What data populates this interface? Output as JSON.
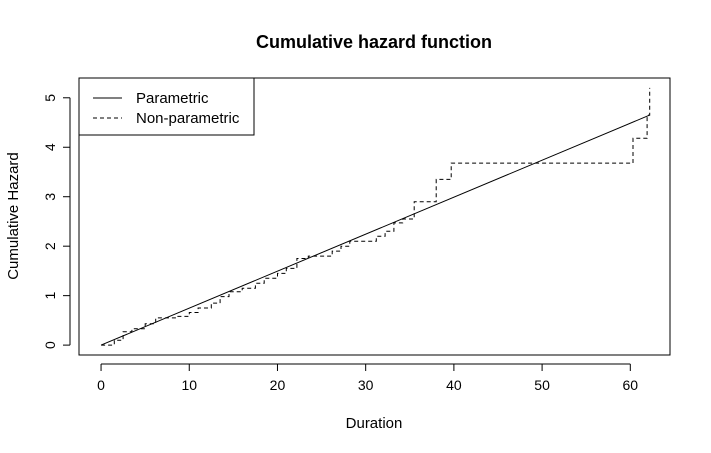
{
  "chart_data": {
    "type": "line",
    "title": "Cumulative hazard function",
    "xlabel": "Duration",
    "ylabel": "Cumulative Hazard",
    "xlim": [
      -2.5,
      64.5
    ],
    "ylim": [
      -0.2,
      5.4
    ],
    "x_ticks": [
      0,
      10,
      20,
      30,
      40,
      50,
      60
    ],
    "y_ticks": [
      0,
      1,
      2,
      3,
      4,
      5
    ],
    "legend_position": "top-left",
    "grid": false,
    "series": [
      {
        "name": "Parametric",
        "style": "solid",
        "color": "#000000",
        "x": [
          0,
          62.2
        ],
        "y": [
          0,
          4.65
        ]
      },
      {
        "name": "Non-parametric",
        "style": "dashed-step",
        "color": "#000000",
        "x": [
          0,
          1.5,
          2.5,
          3.5,
          5,
          6.2,
          8.5,
          10,
          11,
          12.5,
          13.5,
          14.5,
          16,
          17.5,
          18.5,
          20,
          21,
          22.2,
          23.5,
          26.2,
          27.2,
          28.2,
          31.2,
          32.2,
          33.2,
          34.2,
          35.5,
          38,
          39.7,
          60.3,
          61.9,
          62.2
        ],
        "y": [
          0,
          0.1,
          0.27,
          0.33,
          0.43,
          0.55,
          0.58,
          0.66,
          0.75,
          0.85,
          0.98,
          1.08,
          1.15,
          1.25,
          1.35,
          1.45,
          1.55,
          1.75,
          1.8,
          1.9,
          2.0,
          2.1,
          2.2,
          2.3,
          2.47,
          2.55,
          2.9,
          3.35,
          3.68,
          4.18,
          4.65,
          5.2
        ]
      }
    ]
  }
}
